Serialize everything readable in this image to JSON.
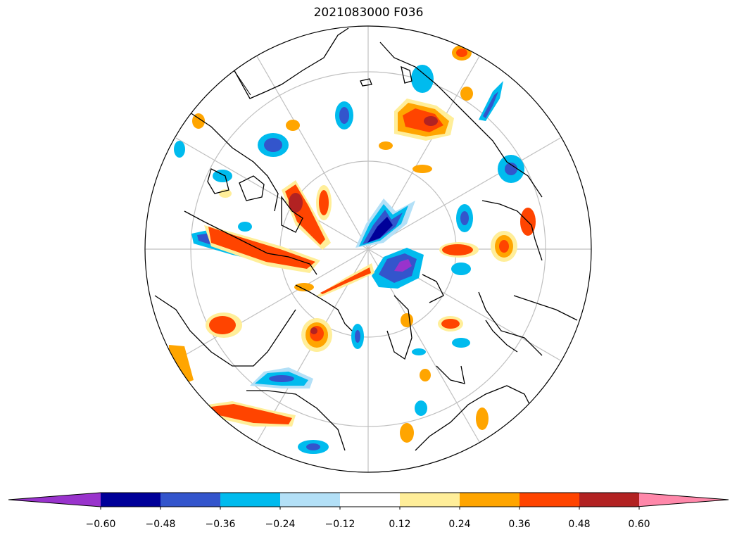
{
  "title": "2021083000 F036",
  "projection": "north-polar-stereographic",
  "colorbar": {
    "extend": "both",
    "levels": [
      "−0.60",
      "−0.48",
      "−0.36",
      "−0.24",
      "−0.12",
      "0.12",
      "0.24",
      "0.36",
      "0.48",
      "0.60"
    ],
    "colors": [
      "#9933cc",
      "#000099",
      "#3355cc",
      "#00bbee",
      "#b3e0f7",
      "#ffffff",
      "#ffee99",
      "#ffa500",
      "#ff4400",
      "#b22222",
      "#ff88aa"
    ]
  },
  "colors": {
    "land_outline": "#000000",
    "graticule": "#c0c0c0",
    "background": "#ffffff"
  }
}
